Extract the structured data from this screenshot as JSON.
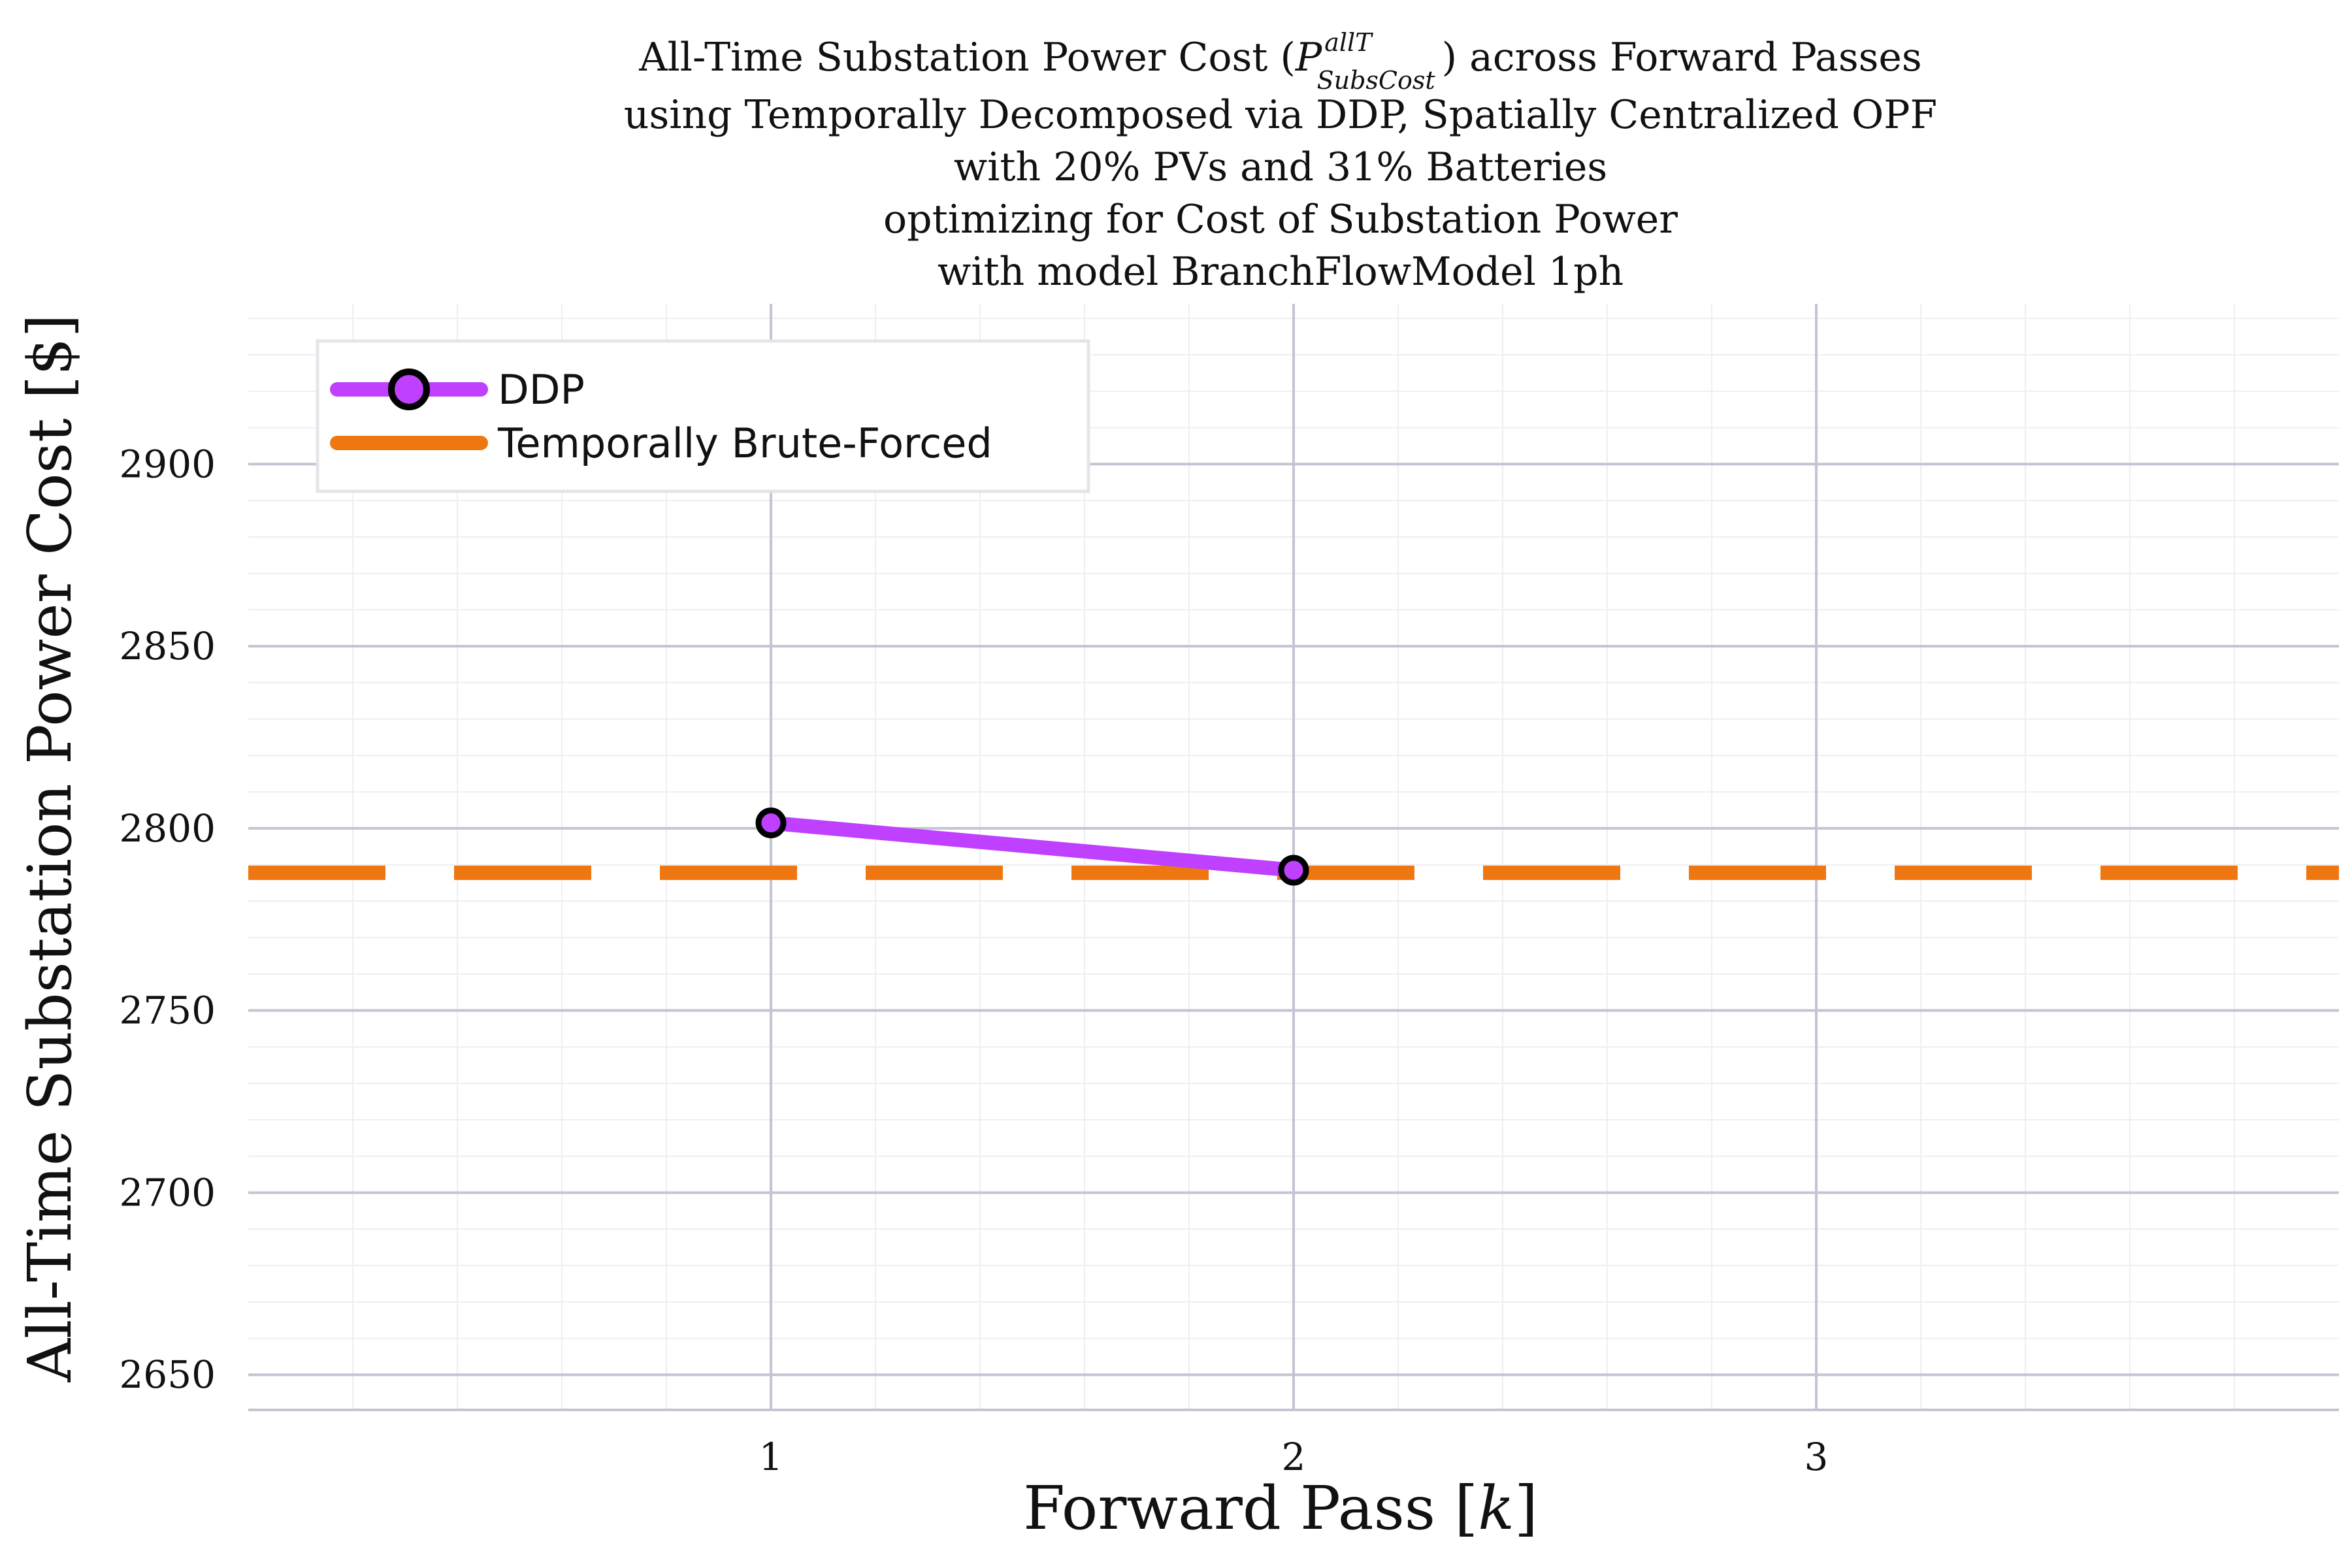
{
  "chart_data": {
    "type": "line",
    "title_lines": [
      "All-Time Substation Power Cost (",
      "using Temporally Decomposed via DDP, Spatially Centralized OPF",
      "with 20% PVs and 31% Batteries",
      "optimizing for Cost of Substation Power",
      "with model BranchFlowModel 1ph"
    ],
    "title_symbol": {
      "base": "P",
      "sup": "allT",
      "sub": "SubsCost",
      "suffix": ") across Forward Passes"
    },
    "xlabel_text": "Forward Pass [",
    "xlabel_var": "k",
    "xlabel_close": "]",
    "ylabel": "All-Time Substation Power Cost [$]",
    "xlim": [
      0,
      4
    ],
    "ylim": [
      2640,
      2944
    ],
    "x_ticks": [
      1,
      2,
      3
    ],
    "y_ticks": [
      2650,
      2700,
      2750,
      2800,
      2850,
      2900
    ],
    "x_ticks_minor": [
      0.2,
      0.4,
      0.6,
      0.8,
      1.2,
      1.4,
      1.6,
      1.8,
      2.2,
      2.4,
      2.6,
      2.8,
      3.2,
      3.4,
      3.6,
      3.8
    ],
    "y_ticks_minor": [
      2660,
      2670,
      2680,
      2690,
      2710,
      2720,
      2730,
      2740,
      2760,
      2770,
      2780,
      2790,
      2810,
      2820,
      2830,
      2840,
      2860,
      2870,
      2880,
      2890,
      2910,
      2920,
      2930,
      2940
    ],
    "grid": true,
    "legend_position": "top-left",
    "series": [
      {
        "name": "DDP",
        "x": [
          1,
          2
        ],
        "y": [
          2801.5,
          2788.5
        ],
        "color": "#bf40ff",
        "marker": "circle",
        "style": "solid"
      },
      {
        "name": "Temporally Brute-Forced",
        "y": 2787.8,
        "color": "#ee7711",
        "style": "dashed"
      }
    ]
  }
}
